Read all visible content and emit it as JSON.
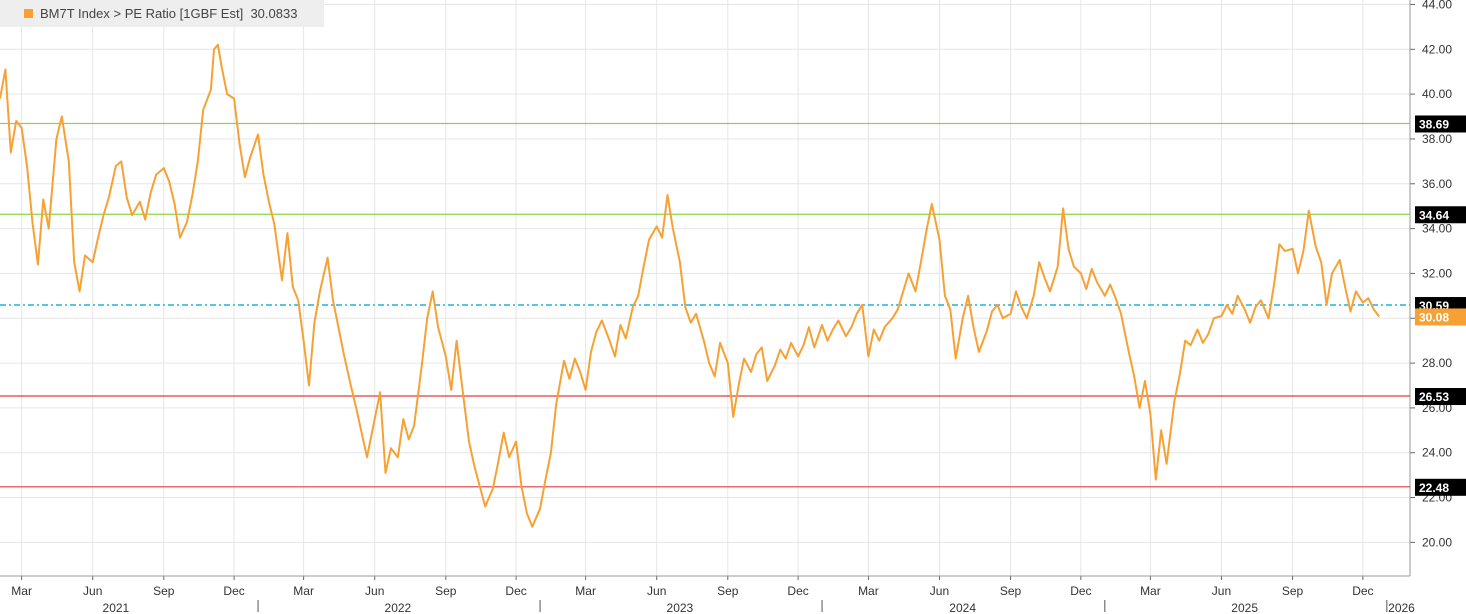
{
  "legend": {
    "ticker": "BM7T Index",
    "sep": ">",
    "field": "PE Ratio [1GBF Est]",
    "last": "30.0833",
    "color": "#f7a135"
  },
  "chart_data": {
    "type": "line",
    "ylim": [
      18.5,
      44.2
    ],
    "yticks": [
      20,
      22,
      24,
      26,
      28,
      30,
      32,
      34,
      36,
      38,
      40,
      42,
      44
    ],
    "ytick_labels": [
      "20.00",
      "22.00",
      "24.00",
      "26.00",
      "28.00",
      "30.00",
      "32.00",
      "34.00",
      "36.00",
      "38.00",
      "40.00",
      "42.00",
      "44.00"
    ],
    "xlim": [
      "2021-02-01",
      "2026-01-31"
    ],
    "month_labels": [
      {
        "date": "2021-03-01",
        "label": "Mar"
      },
      {
        "date": "2021-06-01",
        "label": "Jun"
      },
      {
        "date": "2021-09-01",
        "label": "Sep"
      },
      {
        "date": "2021-12-01",
        "label": "Dec"
      },
      {
        "date": "2022-03-01",
        "label": "Mar"
      },
      {
        "date": "2022-06-01",
        "label": "Jun"
      },
      {
        "date": "2022-09-01",
        "label": "Sep"
      },
      {
        "date": "2022-12-01",
        "label": "Dec"
      },
      {
        "date": "2023-03-01",
        "label": "Mar"
      },
      {
        "date": "2023-06-01",
        "label": "Jun"
      },
      {
        "date": "2023-09-01",
        "label": "Sep"
      },
      {
        "date": "2023-12-01",
        "label": "Dec"
      },
      {
        "date": "2024-03-01",
        "label": "Mar"
      },
      {
        "date": "2024-06-01",
        "label": "Jun"
      },
      {
        "date": "2024-09-01",
        "label": "Sep"
      },
      {
        "date": "2024-12-01",
        "label": "Dec"
      },
      {
        "date": "2025-03-01",
        "label": "Mar"
      },
      {
        "date": "2025-06-01",
        "label": "Jun"
      },
      {
        "date": "2025-09-01",
        "label": "Sep"
      },
      {
        "date": "2025-12-01",
        "label": "Dec"
      }
    ],
    "year_labels": [
      {
        "date": "2021-07-01",
        "label": "2021"
      },
      {
        "date": "2022-07-01",
        "label": "2022"
      },
      {
        "date": "2023-07-01",
        "label": "2023"
      },
      {
        "date": "2024-07-01",
        "label": "2024"
      },
      {
        "date": "2025-07-01",
        "label": "2025"
      },
      {
        "date": "2026-01-20",
        "label": "2026"
      }
    ],
    "year_boundaries": [
      "2022-01-01",
      "2023-01-01",
      "2024-01-01",
      "2025-01-01",
      "2026-01-01"
    ],
    "grid": true,
    "reference_lines": [
      {
        "value": 38.69,
        "label": "38.69",
        "style": "solid",
        "color": "#8ed44a"
      },
      {
        "value": 34.64,
        "label": "34.64",
        "style": "solid",
        "color": "#8ed44a"
      },
      {
        "value": 30.59,
        "label": "30.59",
        "style": "dashdot",
        "color": "#1fb4d8"
      },
      {
        "value": 26.53,
        "label": "26.53",
        "style": "solid",
        "color": "#e63a3a"
      },
      {
        "value": 22.48,
        "label": "22.48",
        "style": "solid",
        "color": "#e63a3a"
      }
    ],
    "last_value": {
      "value": 30.08,
      "label": "30.08",
      "color": "#f7a135"
    },
    "series": [
      {
        "color": "#f7a135",
        "points": [
          [
            "2021-02-01",
            39.8
          ],
          [
            "2021-02-08",
            41.1
          ],
          [
            "2021-02-15",
            37.4
          ],
          [
            "2021-02-22",
            38.8
          ],
          [
            "2021-03-01",
            38.5
          ],
          [
            "2021-03-08",
            36.8
          ],
          [
            "2021-03-15",
            34.3
          ],
          [
            "2021-03-22",
            32.4
          ],
          [
            "2021-03-29",
            35.3
          ],
          [
            "2021-04-05",
            34.0
          ],
          [
            "2021-04-15",
            38.0
          ],
          [
            "2021-04-22",
            39.0
          ],
          [
            "2021-05-01",
            37.0
          ],
          [
            "2021-05-08",
            32.5
          ],
          [
            "2021-05-15",
            31.2
          ],
          [
            "2021-05-22",
            32.8
          ],
          [
            "2021-06-01",
            32.5
          ],
          [
            "2021-06-08",
            33.6
          ],
          [
            "2021-06-15",
            34.6
          ],
          [
            "2021-06-22",
            35.4
          ],
          [
            "2021-07-01",
            36.8
          ],
          [
            "2021-07-08",
            37.0
          ],
          [
            "2021-07-15",
            35.4
          ],
          [
            "2021-07-22",
            34.6
          ],
          [
            "2021-08-01",
            35.2
          ],
          [
            "2021-08-08",
            34.4
          ],
          [
            "2021-08-15",
            35.6
          ],
          [
            "2021-08-22",
            36.4
          ],
          [
            "2021-09-01",
            36.7
          ],
          [
            "2021-09-08",
            36.1
          ],
          [
            "2021-09-15",
            35.1
          ],
          [
            "2021-09-22",
            33.6
          ],
          [
            "2021-10-01",
            34.3
          ],
          [
            "2021-10-08",
            35.5
          ],
          [
            "2021-10-15",
            37.0
          ],
          [
            "2021-10-22",
            39.3
          ],
          [
            "2021-11-01",
            40.2
          ],
          [
            "2021-11-05",
            42.0
          ],
          [
            "2021-11-10",
            42.2
          ],
          [
            "2021-11-15",
            41.2
          ],
          [
            "2021-11-22",
            40.0
          ],
          [
            "2021-12-01",
            39.8
          ],
          [
            "2021-12-08",
            37.8
          ],
          [
            "2021-12-15",
            36.3
          ],
          [
            "2021-12-22",
            37.2
          ],
          [
            "2022-01-01",
            38.2
          ],
          [
            "2022-01-08",
            36.4
          ],
          [
            "2022-01-15",
            35.2
          ],
          [
            "2022-01-22",
            34.2
          ],
          [
            "2022-02-01",
            31.7
          ],
          [
            "2022-02-08",
            33.8
          ],
          [
            "2022-02-15",
            31.4
          ],
          [
            "2022-02-22",
            30.8
          ],
          [
            "2022-03-01",
            29.0
          ],
          [
            "2022-03-08",
            27.0
          ],
          [
            "2022-03-15",
            29.8
          ],
          [
            "2022-03-22",
            31.2
          ],
          [
            "2022-04-01",
            32.7
          ],
          [
            "2022-04-08",
            30.8
          ],
          [
            "2022-04-15",
            29.6
          ],
          [
            "2022-04-22",
            28.4
          ],
          [
            "2022-05-01",
            27.0
          ],
          [
            "2022-05-08",
            26.0
          ],
          [
            "2022-05-15",
            24.9
          ],
          [
            "2022-05-22",
            23.8
          ],
          [
            "2022-06-01",
            25.5
          ],
          [
            "2022-06-08",
            26.7
          ],
          [
            "2022-06-15",
            23.1
          ],
          [
            "2022-06-22",
            24.2
          ],
          [
            "2022-07-01",
            23.8
          ],
          [
            "2022-07-08",
            25.5
          ],
          [
            "2022-07-15",
            24.6
          ],
          [
            "2022-07-22",
            25.2
          ],
          [
            "2022-08-01",
            27.9
          ],
          [
            "2022-08-08",
            30.0
          ],
          [
            "2022-08-15",
            31.2
          ],
          [
            "2022-08-22",
            29.6
          ],
          [
            "2022-09-01",
            28.3
          ],
          [
            "2022-09-08",
            26.8
          ],
          [
            "2022-09-15",
            29.0
          ],
          [
            "2022-09-22",
            27.0
          ],
          [
            "2022-10-01",
            24.5
          ],
          [
            "2022-10-08",
            23.4
          ],
          [
            "2022-10-15",
            22.5
          ],
          [
            "2022-10-22",
            21.6
          ],
          [
            "2022-11-01",
            22.4
          ],
          [
            "2022-11-08",
            23.6
          ],
          [
            "2022-11-15",
            24.9
          ],
          [
            "2022-11-22",
            23.8
          ],
          [
            "2022-12-01",
            24.5
          ],
          [
            "2022-12-08",
            22.5
          ],
          [
            "2022-12-15",
            21.3
          ],
          [
            "2022-12-22",
            20.7
          ],
          [
            "2023-01-01",
            21.5
          ],
          [
            "2023-01-08",
            22.8
          ],
          [
            "2023-01-15",
            24.0
          ],
          [
            "2023-01-22",
            26.2
          ],
          [
            "2023-02-01",
            28.1
          ],
          [
            "2023-02-08",
            27.3
          ],
          [
            "2023-02-15",
            28.2
          ],
          [
            "2023-02-22",
            27.6
          ],
          [
            "2023-03-01",
            26.8
          ],
          [
            "2023-03-08",
            28.5
          ],
          [
            "2023-03-15",
            29.4
          ],
          [
            "2023-03-22",
            29.9
          ],
          [
            "2023-04-01",
            29.0
          ],
          [
            "2023-04-08",
            28.3
          ],
          [
            "2023-04-15",
            29.7
          ],
          [
            "2023-04-22",
            29.1
          ],
          [
            "2023-05-01",
            30.5
          ],
          [
            "2023-05-08",
            31.0
          ],
          [
            "2023-05-15",
            32.3
          ],
          [
            "2023-05-22",
            33.5
          ],
          [
            "2023-06-01",
            34.1
          ],
          [
            "2023-06-08",
            33.6
          ],
          [
            "2023-06-15",
            35.5
          ],
          [
            "2023-06-22",
            34.0
          ],
          [
            "2023-07-01",
            32.5
          ],
          [
            "2023-07-08",
            30.5
          ],
          [
            "2023-07-15",
            29.8
          ],
          [
            "2023-07-22",
            30.2
          ],
          [
            "2023-08-01",
            29.0
          ],
          [
            "2023-08-08",
            28.0
          ],
          [
            "2023-08-15",
            27.4
          ],
          [
            "2023-08-22",
            28.9
          ],
          [
            "2023-09-01",
            28.0
          ],
          [
            "2023-09-08",
            25.6
          ],
          [
            "2023-09-15",
            27.0
          ],
          [
            "2023-09-22",
            28.2
          ],
          [
            "2023-10-01",
            27.6
          ],
          [
            "2023-10-08",
            28.4
          ],
          [
            "2023-10-15",
            28.7
          ],
          [
            "2023-10-22",
            27.2
          ],
          [
            "2023-11-01",
            27.9
          ],
          [
            "2023-11-08",
            28.6
          ],
          [
            "2023-11-15",
            28.2
          ],
          [
            "2023-11-22",
            28.9
          ],
          [
            "2023-12-01",
            28.3
          ],
          [
            "2023-12-08",
            28.8
          ],
          [
            "2023-12-15",
            29.6
          ],
          [
            "2023-12-22",
            28.7
          ],
          [
            "2024-01-01",
            29.7
          ],
          [
            "2024-01-08",
            29.0
          ],
          [
            "2024-01-15",
            29.5
          ],
          [
            "2024-01-22",
            29.9
          ],
          [
            "2024-02-01",
            29.2
          ],
          [
            "2024-02-08",
            29.6
          ],
          [
            "2024-02-15",
            30.2
          ],
          [
            "2024-02-22",
            30.6
          ],
          [
            "2024-03-01",
            28.3
          ],
          [
            "2024-03-08",
            29.5
          ],
          [
            "2024-03-15",
            29.0
          ],
          [
            "2024-03-22",
            29.6
          ],
          [
            "2024-04-01",
            30.0
          ],
          [
            "2024-04-08",
            30.4
          ],
          [
            "2024-04-15",
            31.2
          ],
          [
            "2024-04-22",
            32.0
          ],
          [
            "2024-05-01",
            31.2
          ],
          [
            "2024-05-08",
            32.5
          ],
          [
            "2024-05-15",
            33.9
          ],
          [
            "2024-05-22",
            35.1
          ],
          [
            "2024-06-01",
            33.5
          ],
          [
            "2024-06-08",
            31.0
          ],
          [
            "2024-06-15",
            30.4
          ],
          [
            "2024-06-22",
            28.2
          ],
          [
            "2024-07-01",
            30.0
          ],
          [
            "2024-07-08",
            31.0
          ],
          [
            "2024-07-15",
            29.6
          ],
          [
            "2024-07-22",
            28.5
          ],
          [
            "2024-08-01",
            29.4
          ],
          [
            "2024-08-08",
            30.3
          ],
          [
            "2024-08-15",
            30.6
          ],
          [
            "2024-08-22",
            30.0
          ],
          [
            "2024-09-01",
            30.2
          ],
          [
            "2024-09-08",
            31.2
          ],
          [
            "2024-09-15",
            30.5
          ],
          [
            "2024-09-22",
            30.0
          ],
          [
            "2024-10-01",
            31.0
          ],
          [
            "2024-10-08",
            32.5
          ],
          [
            "2024-10-15",
            31.8
          ],
          [
            "2024-10-22",
            31.2
          ],
          [
            "2024-11-01",
            32.3
          ],
          [
            "2024-11-08",
            34.9
          ],
          [
            "2024-11-15",
            33.1
          ],
          [
            "2024-11-22",
            32.3
          ],
          [
            "2024-12-01",
            32.0
          ],
          [
            "2024-12-08",
            31.3
          ],
          [
            "2024-12-15",
            32.2
          ],
          [
            "2024-12-22",
            31.6
          ],
          [
            "2025-01-01",
            31.0
          ],
          [
            "2025-01-08",
            31.5
          ],
          [
            "2025-01-15",
            30.9
          ],
          [
            "2025-01-22",
            30.2
          ],
          [
            "2025-02-01",
            28.5
          ],
          [
            "2025-02-08",
            27.4
          ],
          [
            "2025-02-15",
            26.0
          ],
          [
            "2025-02-22",
            27.2
          ],
          [
            "2025-03-01",
            25.7
          ],
          [
            "2025-03-08",
            22.8
          ],
          [
            "2025-03-15",
            25.0
          ],
          [
            "2025-03-22",
            23.5
          ],
          [
            "2025-04-01",
            26.3
          ],
          [
            "2025-04-08",
            27.5
          ],
          [
            "2025-04-15",
            29.0
          ],
          [
            "2025-04-22",
            28.8
          ],
          [
            "2025-05-01",
            29.5
          ],
          [
            "2025-05-08",
            28.9
          ],
          [
            "2025-05-15",
            29.3
          ],
          [
            "2025-05-22",
            30.0
          ],
          [
            "2025-06-01",
            30.1
          ],
          [
            "2025-06-08",
            30.6
          ],
          [
            "2025-06-15",
            30.2
          ],
          [
            "2025-06-22",
            31.0
          ],
          [
            "2025-07-01",
            30.4
          ],
          [
            "2025-07-08",
            29.8
          ],
          [
            "2025-07-15",
            30.5
          ],
          [
            "2025-07-22",
            30.8
          ],
          [
            "2025-08-01",
            30.0
          ],
          [
            "2025-08-08",
            31.5
          ],
          [
            "2025-08-15",
            33.3
          ],
          [
            "2025-08-22",
            33.0
          ],
          [
            "2025-09-01",
            33.1
          ],
          [
            "2025-09-08",
            32.0
          ],
          [
            "2025-09-15",
            33.0
          ],
          [
            "2025-09-22",
            34.8
          ],
          [
            "2025-10-01",
            33.2
          ],
          [
            "2025-10-08",
            32.5
          ],
          [
            "2025-10-15",
            30.6
          ],
          [
            "2025-10-22",
            32.0
          ],
          [
            "2025-11-01",
            32.6
          ],
          [
            "2025-11-08",
            31.4
          ],
          [
            "2025-11-15",
            30.3
          ],
          [
            "2025-11-22",
            31.2
          ],
          [
            "2025-12-01",
            30.7
          ],
          [
            "2025-12-08",
            30.9
          ],
          [
            "2025-12-15",
            30.4
          ],
          [
            "2025-12-22",
            30.08
          ]
        ]
      }
    ]
  }
}
